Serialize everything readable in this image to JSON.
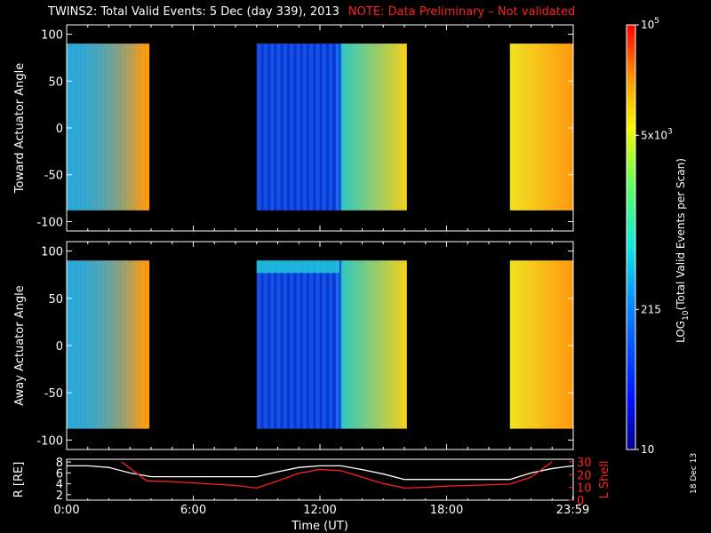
{
  "header": {
    "title": "TWINS2: Total Valid Events:  5 Dec (day 339), 2013",
    "note": "NOTE: Data Preliminary – Not validated"
  },
  "datestamp": "18 Dec 13",
  "colors": {
    "note": "#ff2020",
    "lshell": "#ff2020",
    "radius": "#ffffff",
    "axes": "#ffffff",
    "background": "#000000"
  },
  "chart_data": [
    {
      "type": "heatmap",
      "panel": "toward",
      "ylabel": "Toward Actuator Angle",
      "ylim": [
        -110,
        110
      ],
      "yticks": [
        100,
        50,
        0,
        -50,
        -100
      ],
      "xlim": [
        0,
        24
      ],
      "data_y_range": [
        -88,
        90
      ],
      "segments": [
        {
          "start": 0.0,
          "end": 3.9,
          "colors_start": "#1aa8e8",
          "colors_end": "#ff9a10",
          "profile": "ramp"
        },
        {
          "start": 9.0,
          "end": 13.0,
          "colors_start": "#1040e0",
          "colors_end": "#1890e8",
          "profile": "blue"
        },
        {
          "start": 13.0,
          "end": 16.1,
          "colors_start": "#30c8c0",
          "colors_end": "#f0d020",
          "profile": "ramp2"
        },
        {
          "start": 21.0,
          "end": 24.0,
          "colors_start": "#f0e020",
          "colors_end": "#ff9a10",
          "profile": "yellow"
        }
      ]
    },
    {
      "type": "heatmap",
      "panel": "away",
      "ylabel": "Away Actuator Angle",
      "ylim": [
        -110,
        110
      ],
      "yticks": [
        100,
        50,
        0,
        -50,
        -100
      ],
      "xlim": [
        0,
        24
      ],
      "data_y_range": [
        -88,
        90
      ],
      "segments": [
        {
          "start": 0.0,
          "end": 3.9,
          "colors_start": "#1aa8e8",
          "colors_end": "#ff9a10",
          "profile": "ramp"
        },
        {
          "start": 9.0,
          "end": 13.0,
          "colors_start": "#1040e0",
          "colors_end": "#1890e8",
          "profile": "blue"
        },
        {
          "start": 13.0,
          "end": 16.1,
          "colors_start": "#30c8c0",
          "colors_end": "#f0d020",
          "profile": "ramp2"
        },
        {
          "start": 21.0,
          "end": 24.0,
          "colors_start": "#f0e020",
          "colors_end": "#ff9a10",
          "profile": "yellow"
        }
      ]
    },
    {
      "type": "line",
      "panel": "orbit",
      "xlabel": "Time (UT)",
      "xlim": [
        0,
        24
      ],
      "xticks": [
        0,
        6,
        12,
        18,
        23.98
      ],
      "xtick_labels": [
        "0:00",
        "6:00",
        "12:00",
        "18:00",
        "23:59"
      ],
      "y_left": {
        "label": "R [RE]",
        "ylim": [
          1,
          8.5
        ],
        "ticks": [
          8,
          6,
          4,
          2
        ]
      },
      "y_right": {
        "label": "L Shell",
        "ylim": [
          0,
          32
        ],
        "ticks": [
          30,
          20,
          10,
          0
        ]
      },
      "series": [
        {
          "axis": "left",
          "x": [
            0,
            1,
            2,
            3,
            4,
            5,
            6,
            7,
            8,
            9,
            10,
            11,
            12,
            13,
            14,
            15,
            16,
            17,
            18,
            19,
            20,
            21,
            22,
            23,
            24
          ],
          "y": [
            7.3,
            7.3,
            7.0,
            6.0,
            5.3,
            5.3,
            5.3,
            5.3,
            5.3,
            5.3,
            6.2,
            7.0,
            7.3,
            7.3,
            6.6,
            5.8,
            4.8,
            4.8,
            4.8,
            4.8,
            4.8,
            4.8,
            6.0,
            6.8,
            7.3
          ]
        },
        {
          "axis": "right",
          "x": [
            2.6,
            3.8,
            5,
            6,
            7,
            8,
            9,
            10,
            11,
            12,
            13,
            14,
            15,
            16,
            17,
            18,
            19,
            20,
            21,
            22,
            23
          ],
          "y": [
            30,
            15,
            14.5,
            13.5,
            12.5,
            11.5,
            9.5,
            15,
            21,
            24,
            23,
            18,
            13,
            9.5,
            10,
            11,
            11.5,
            12,
            12.5,
            18,
            30
          ]
        }
      ]
    }
  ],
  "colorbar": {
    "label_prefix": "LOG",
    "label_sub": "10",
    "label_rest": "(Total Valid Events per Scan)",
    "ticks": [
      {
        "frac": 1.0,
        "label": "10",
        "sup": "5"
      },
      {
        "frac": 0.74,
        "label": "5x10",
        "sup": "3"
      },
      {
        "frac": 0.33,
        "label": "215",
        "sup": ""
      },
      {
        "frac": 0.0,
        "label": "10",
        "sup": ""
      }
    ]
  }
}
